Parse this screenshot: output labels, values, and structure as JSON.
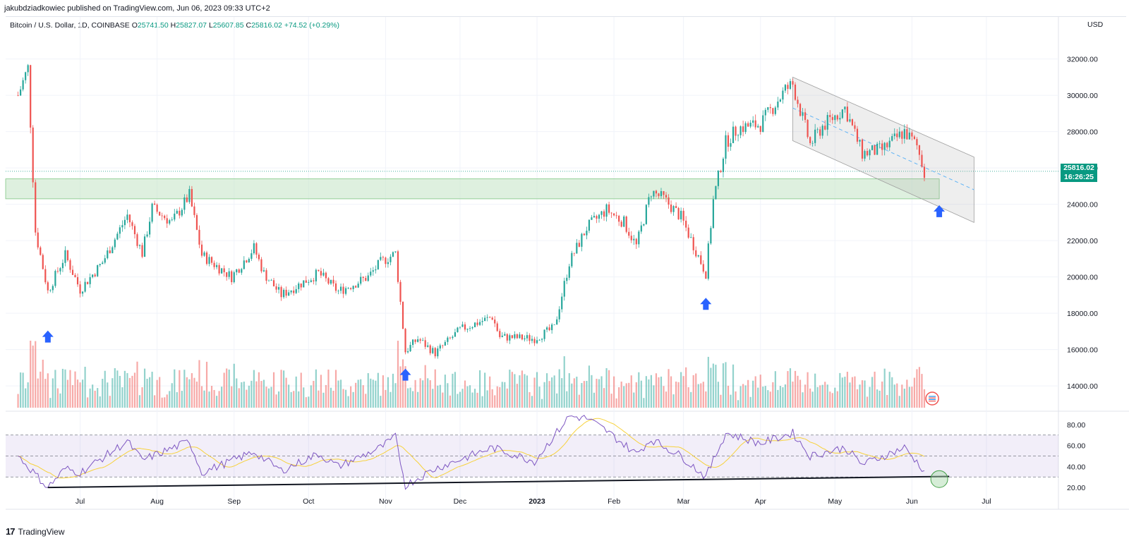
{
  "publisher": "jakubdziadkowiec published on TradingView.com, Jun 06, 2023 09:33 UTC+2",
  "symbol": {
    "title": "Bitcoin / U.S. Dollar, 1D, COINBASE",
    "open_label": "O",
    "open": "25741.50",
    "high_label": "H",
    "high": "25827.07",
    "low_label": "L",
    "low": "25607.85",
    "close_label": "C",
    "close": "25816.02",
    "change": "+74.52 (+0.29%)"
  },
  "currency": "USD",
  "price_tag": {
    "price": "25816.02",
    "countdown": "16:26:25"
  },
  "footer": {
    "logo": "17",
    "brand": "TradingView"
  },
  "colors": {
    "up": "#26a69a",
    "down": "#ef5350",
    "rsi": "#7e57c2",
    "rsi_ma": "#f7d23c",
    "zone": "#c8e6c9",
    "arrow": "#2962ff"
  },
  "chart_data": {
    "type": "candlestick",
    "x_axis": {
      "labels": [
        "Jul",
        "Aug",
        "Sep",
        "Oct",
        "Nov",
        "Dec",
        "2023",
        "Feb",
        "Mar",
        "Apr",
        "May",
        "Jun",
        "Jul"
      ]
    },
    "price_axis": {
      "ticks": [
        "32000.00",
        "30000.00",
        "28000.00",
        "26000.00",
        "24000.00",
        "22000.00",
        "20000.00",
        "18000.00",
        "16000.00",
        "14000.00"
      ],
      "range": [
        12800,
        33500
      ]
    },
    "rsi_axis": {
      "ticks": [
        "80.00",
        "60.00",
        "40.00",
        "20.00"
      ],
      "range": [
        14,
        86
      ],
      "bands": [
        30,
        50,
        70
      ]
    },
    "close_path": [
      {
        "date": "2022-06-06",
        "price": 30000
      },
      {
        "date": "2022-06-10",
        "price": 31500
      },
      {
        "date": "2022-06-13",
        "price": 22500
      },
      {
        "date": "2022-06-18",
        "price": 19200
      },
      {
        "date": "2022-06-25",
        "price": 21200
      },
      {
        "date": "2022-07-01",
        "price": 19300
      },
      {
        "date": "2022-07-10",
        "price": 20800
      },
      {
        "date": "2022-07-20",
        "price": 23400
      },
      {
        "date": "2022-07-26",
        "price": 21300
      },
      {
        "date": "2022-07-30",
        "price": 23800
      },
      {
        "date": "2022-08-07",
        "price": 23000
      },
      {
        "date": "2022-08-14",
        "price": 24500
      },
      {
        "date": "2022-08-19",
        "price": 21200
      },
      {
        "date": "2022-08-31",
        "price": 20000
      },
      {
        "date": "2022-09-09",
        "price": 21600
      },
      {
        "date": "2022-09-13",
        "price": 20200
      },
      {
        "date": "2022-09-20",
        "price": 19000
      },
      {
        "date": "2022-10-05",
        "price": 20200
      },
      {
        "date": "2022-10-13",
        "price": 19200
      },
      {
        "date": "2022-10-25",
        "price": 20000
      },
      {
        "date": "2022-10-30",
        "price": 20800
      },
      {
        "date": "2022-11-05",
        "price": 21300
      },
      {
        "date": "2022-11-09",
        "price": 15900
      },
      {
        "date": "2022-11-14",
        "price": 16600
      },
      {
        "date": "2022-11-21",
        "price": 15800
      },
      {
        "date": "2022-12-01",
        "price": 17100
      },
      {
        "date": "2022-12-14",
        "price": 17800
      },
      {
        "date": "2022-12-17",
        "price": 16700
      },
      {
        "date": "2022-12-31",
        "price": 16600
      },
      {
        "date": "2023-01-08",
        "price": 17200
      },
      {
        "date": "2023-01-14",
        "price": 20800
      },
      {
        "date": "2023-01-21",
        "price": 22700
      },
      {
        "date": "2023-01-29",
        "price": 23700
      },
      {
        "date": "2023-02-05",
        "price": 23000
      },
      {
        "date": "2023-02-10",
        "price": 21700
      },
      {
        "date": "2023-02-16",
        "price": 24700
      },
      {
        "date": "2023-02-21",
        "price": 24300
      },
      {
        "date": "2023-02-28",
        "price": 23300
      },
      {
        "date": "2023-03-10",
        "price": 20200
      },
      {
        "date": "2023-03-13",
        "price": 24200
      },
      {
        "date": "2023-03-18",
        "price": 27400
      },
      {
        "date": "2023-03-23",
        "price": 28200
      },
      {
        "date": "2023-04-01",
        "price": 28400
      },
      {
        "date": "2023-04-11",
        "price": 30300
      },
      {
        "date": "2023-04-14",
        "price": 30600
      },
      {
        "date": "2023-04-21",
        "price": 27300
      },
      {
        "date": "2023-04-26",
        "price": 28300
      },
      {
        "date": "2023-05-05",
        "price": 29300
      },
      {
        "date": "2023-05-12",
        "price": 26800
      },
      {
        "date": "2023-05-20",
        "price": 27000
      },
      {
        "date": "2023-05-29",
        "price": 28000
      },
      {
        "date": "2023-06-03",
        "price": 27200
      },
      {
        "date": "2023-06-06",
        "price": 25816
      }
    ],
    "rsi_path": [
      {
        "date": "2022-06-06",
        "rsi": 50
      },
      {
        "date": "2022-06-18",
        "rsi": 20
      },
      {
        "date": "2022-06-25",
        "rsi": 38
      },
      {
        "date": "2022-07-01",
        "rsi": 34
      },
      {
        "date": "2022-07-20",
        "rsi": 64
      },
      {
        "date": "2022-07-26",
        "rsi": 46
      },
      {
        "date": "2022-08-14",
        "rsi": 64
      },
      {
        "date": "2022-08-19",
        "rsi": 34
      },
      {
        "date": "2022-09-09",
        "rsi": 54
      },
      {
        "date": "2022-09-20",
        "rsi": 36
      },
      {
        "date": "2022-10-05",
        "rsi": 52
      },
      {
        "date": "2022-10-13",
        "rsi": 40
      },
      {
        "date": "2022-10-30",
        "rsi": 58
      },
      {
        "date": "2022-11-05",
        "rsi": 68
      },
      {
        "date": "2022-11-09",
        "rsi": 22
      },
      {
        "date": "2022-11-21",
        "rsi": 38
      },
      {
        "date": "2022-12-14",
        "rsi": 58
      },
      {
        "date": "2022-12-31",
        "rsi": 45
      },
      {
        "date": "2023-01-14",
        "rsi": 88
      },
      {
        "date": "2023-01-21",
        "rsi": 86
      },
      {
        "date": "2023-01-29",
        "rsi": 74
      },
      {
        "date": "2023-02-10",
        "rsi": 52
      },
      {
        "date": "2023-02-16",
        "rsi": 66
      },
      {
        "date": "2023-02-28",
        "rsi": 50
      },
      {
        "date": "2023-03-10",
        "rsi": 30
      },
      {
        "date": "2023-03-18",
        "rsi": 72
      },
      {
        "date": "2023-04-01",
        "rsi": 62
      },
      {
        "date": "2023-04-14",
        "rsi": 72
      },
      {
        "date": "2023-04-21",
        "rsi": 50
      },
      {
        "date": "2023-05-05",
        "rsi": 58
      },
      {
        "date": "2023-05-12",
        "rsi": 42
      },
      {
        "date": "2023-05-29",
        "rsi": 58
      },
      {
        "date": "2023-06-06",
        "rsi": 36
      }
    ],
    "horizontal_zone": {
      "from": 24300,
      "to": 25400
    },
    "descending_channel": {
      "upper": [
        {
          "date": "2023-04-14",
          "price": 31000
        },
        {
          "date": "2023-06-26",
          "price": 26600
        }
      ],
      "lower": [
        {
          "date": "2023-04-14",
          "price": 27500
        },
        {
          "date": "2023-06-26",
          "price": 23000
        }
      ],
      "midline": [
        {
          "date": "2023-04-14",
          "price": 29300
        },
        {
          "date": "2023-06-26",
          "price": 24800
        }
      ]
    },
    "rsi_support_line": [
      {
        "date": "2022-06-18",
        "rsi": 20
      },
      {
        "date": "2023-06-16",
        "rsi": 30.5
      }
    ],
    "up_arrows": [
      {
        "date": "2022-06-18",
        "price": 16700
      },
      {
        "date": "2022-11-09",
        "price": 14600
      },
      {
        "date": "2023-03-10",
        "price": 18500
      },
      {
        "date": "2023-06-12",
        "price": 23600
      }
    ],
    "rsi_circle": {
      "date": "2023-06-12",
      "rsi": 28
    }
  }
}
